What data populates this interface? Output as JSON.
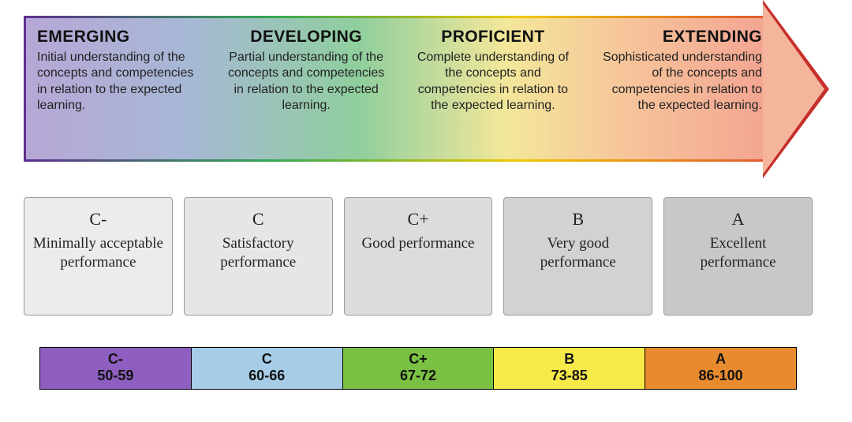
{
  "arrow": {
    "gradient_stops": [
      "#b7a7d6",
      "#a7b8d5",
      "#8fcf9d",
      "#f3e79a",
      "#f6c39a",
      "#f3a592"
    ],
    "head_border_color": "#c62f2a",
    "head_fill_color": "#f4b59c",
    "title_fontsize": 21,
    "desc_fontsize": 16,
    "stages": [
      {
        "key": "emerging",
        "title": "EMERGING",
        "align": "left",
        "desc": "Initial understanding of the concepts and competencies in relation to the expected learning."
      },
      {
        "key": "developing",
        "title": "DEVELOPING",
        "align": "center",
        "desc": "Partial understanding of the concepts and competencies in relation to the expected learning."
      },
      {
        "key": "proficient",
        "title": "PROFICIENT",
        "align": "center",
        "desc": "Complete understanding of the concepts and competencies in relation to the expected learning."
      },
      {
        "key": "extending",
        "title": "EXTENDING",
        "align": "right",
        "desc": "Sophisticated understanding of the concepts and competencies in relation to the expected learning."
      }
    ]
  },
  "cards": {
    "bg_colors": [
      "#ececec",
      "#e6e6e6",
      "#dcdcdc",
      "#d2d2d2",
      "#c8c8c8"
    ],
    "border_color": "#9a9a9a",
    "grade_fontsize": 22,
    "desc_fontsize": 19,
    "font_family": "Georgia",
    "items": [
      {
        "grade": "C-",
        "desc": "Minimally acceptable performance"
      },
      {
        "grade": "C",
        "desc": "Satisfactory performance"
      },
      {
        "grade": "C+",
        "desc": "Good performance"
      },
      {
        "grade": "B",
        "desc": "Very good performance"
      },
      {
        "grade": "A",
        "desc": "Excellent performance"
      }
    ]
  },
  "scorebar": {
    "border_color": "#000000",
    "label_fontsize": 18,
    "cells": [
      {
        "grade": "C-",
        "range": "50-59",
        "bg": "#8e5fc0"
      },
      {
        "grade": "C",
        "range": "60-66",
        "bg": "#a6cce8"
      },
      {
        "grade": "C+",
        "range": "67-72",
        "bg": "#7ac143"
      },
      {
        "grade": "B",
        "range": "73-85",
        "bg": "#f7e948"
      },
      {
        "grade": "A",
        "range": "86-100",
        "bg": "#e88b2e"
      }
    ]
  }
}
